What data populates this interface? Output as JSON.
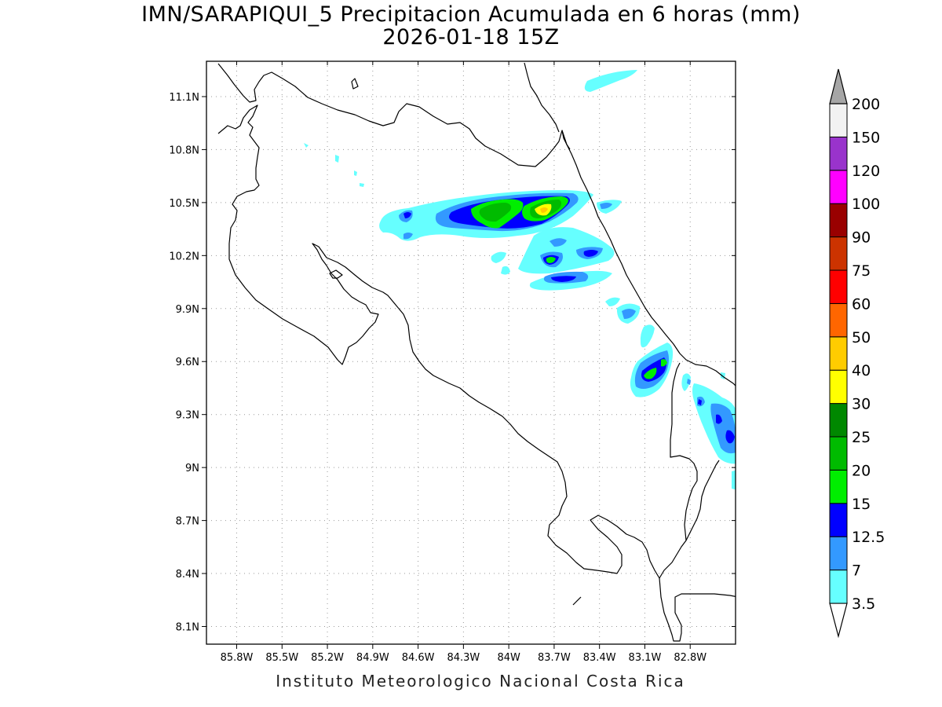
{
  "title": {
    "line1": "IMN/SARAPIQUI_5 Precipitacion Acumulada en 6 horas (mm)",
    "line2": "2026-01-18 15Z"
  },
  "credit": "Instituto Meteorologico Nacional Costa Rica",
  "map": {
    "lon_range": [
      -86.0,
      -82.5
    ],
    "lat_range": [
      8.0,
      11.3
    ],
    "x_ticks": [
      "85.8W",
      "85.5W",
      "85.2W",
      "84.9W",
      "84.6W",
      "84.3W",
      "84W",
      "83.7W",
      "83.4W",
      "83.1W",
      "82.8W"
    ],
    "y_ticks": [
      "11.1N",
      "10.8N",
      "10.5N",
      "10.2N",
      "9.9N",
      "9.6N",
      "9.3N",
      "9N",
      "8.7N",
      "8.4N",
      "8.1N"
    ],
    "grid": "dotted"
  },
  "colorbar": {
    "labels": [
      "3.5",
      "7",
      "12.5",
      "15",
      "20",
      "25",
      "30",
      "40",
      "50",
      "60",
      "75",
      "90",
      "100",
      "120",
      "150",
      "200"
    ],
    "colors": [
      "#66ffff",
      "#3399ff",
      "#0000ff",
      "#00ee00",
      "#00bb00",
      "#008800",
      "#ffff00",
      "#ffcc00",
      "#ff6600",
      "#ff0000",
      "#cc3300",
      "#990000",
      "#ff00ff",
      "#9933cc",
      "#f2f2f2",
      "#a6a6a6"
    ],
    "units": "mm"
  }
}
